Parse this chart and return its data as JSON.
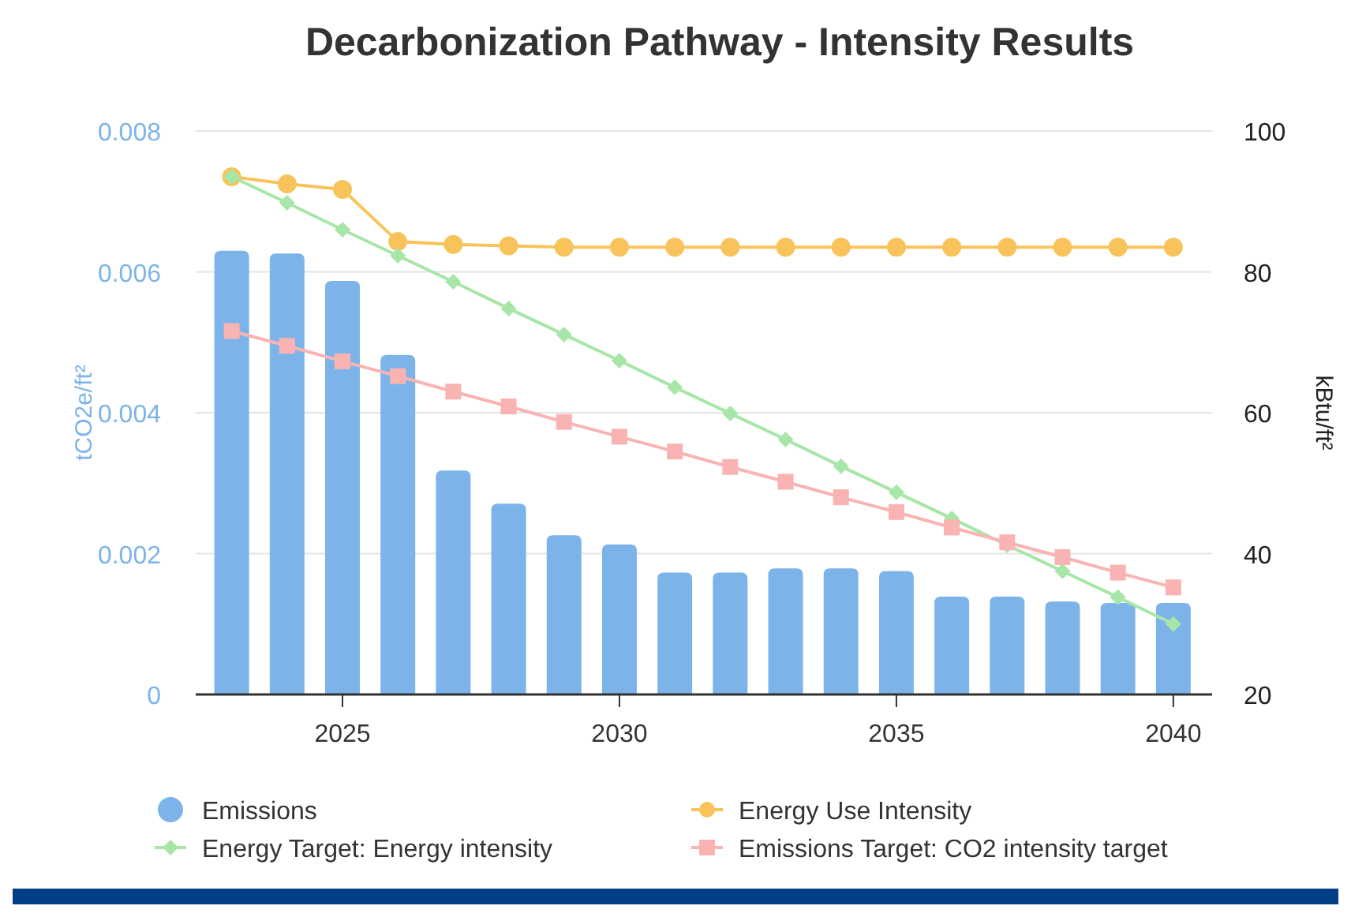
{
  "chart_data": {
    "type": "bar",
    "title": "Decarbonization Pathway - Intensity Results",
    "ylabel": "tCO2e/ft²",
    "y2label": "kBtu/ft²",
    "x": [
      2023,
      2024,
      2025,
      2026,
      2027,
      2028,
      2029,
      2030,
      2031,
      2032,
      2033,
      2034,
      2035,
      2036,
      2037,
      2038,
      2039,
      2040
    ],
    "xlim": [
      2022.35,
      2040.7
    ],
    "xticks": [
      2025,
      2030,
      2035,
      2040
    ],
    "ylim": [
      0,
      0.008
    ],
    "yticks": [
      0,
      0.002,
      0.004,
      0.006,
      0.008
    ],
    "y2lim": [
      20,
      100
    ],
    "y2ticks": [
      20,
      40,
      60,
      80,
      100
    ],
    "grid": "y",
    "legend": "bottom",
    "series": [
      {
        "name": "Emissions",
        "color": "#7cb4ea",
        "marker": "circle",
        "values": [
          0.0063,
          0.00626,
          0.00587,
          0.00482,
          0.00318,
          0.00271,
          0.00226,
          0.00213,
          0.00173,
          0.00173,
          0.00179,
          0.00179,
          0.00175,
          0.00139,
          0.00139,
          0.00132,
          0.0013,
          0.0013
        ]
      },
      {
        "name": "Energy Use Intensity",
        "type": "line",
        "axis": "y2",
        "color": "#f9c35b",
        "marker": "circle",
        "values": [
          93.5,
          92.5,
          91.7,
          84.3,
          83.9,
          83.7,
          83.5,
          83.5,
          83.5,
          83.5,
          83.5,
          83.5,
          83.5,
          83.5,
          83.5,
          83.5,
          83.5,
          83.5
        ]
      },
      {
        "name": "Energy Target: Energy intensity",
        "type": "line",
        "axis": "y2",
        "color": "#a8e6a8",
        "marker": "diamond",
        "values": [
          93.5,
          89.8,
          86.0,
          82.3,
          78.6,
          74.8,
          71.1,
          67.4,
          63.6,
          59.9,
          56.2,
          52.4,
          48.7,
          45.0,
          41.2,
          37.5,
          33.8,
          30.0
        ]
      },
      {
        "name": "Emissions Target: CO2 intensity target",
        "type": "line",
        "color": "#f9b3b3",
        "marker": "square",
        "values": [
          0.00516,
          0.00495,
          0.00473,
          0.00452,
          0.0043,
          0.00409,
          0.00387,
          0.00366,
          0.00345,
          0.00323,
          0.00302,
          0.0028,
          0.00259,
          0.00237,
          0.00216,
          0.00195,
          0.00173,
          0.00152
        ]
      }
    ]
  }
}
